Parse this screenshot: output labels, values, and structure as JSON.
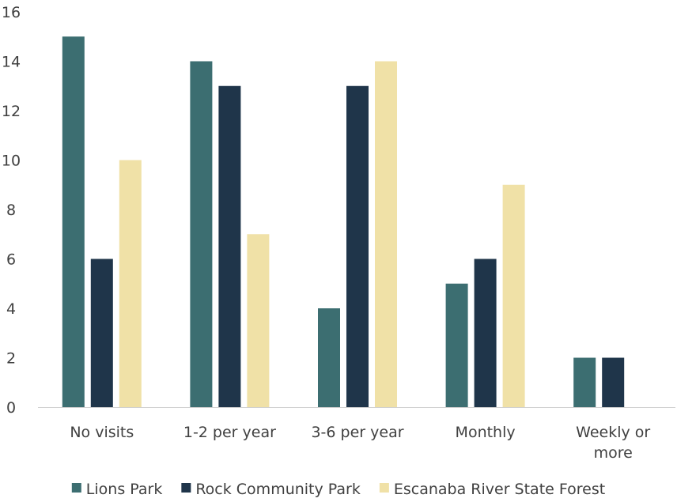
{
  "chart_data": {
    "type": "bar",
    "categories": [
      "No visits",
      "1-2 per year",
      "3-6 per year",
      "Monthly",
      "Weekly or more"
    ],
    "series": [
      {
        "name": "Lions Park",
        "color": "#3c6e71",
        "values": [
          15,
          14,
          4,
          5,
          2
        ]
      },
      {
        "name": "Rock Community Park",
        "color": "#1f354a",
        "values": [
          6,
          13,
          13,
          6,
          2
        ]
      },
      {
        "name": "Escanaba River State Forest",
        "color": "#f0e1a7",
        "values": [
          10,
          7,
          14,
          9,
          0
        ]
      }
    ],
    "ylim": [
      0,
      16
    ],
    "yticks": [
      0,
      2,
      4,
      6,
      8,
      10,
      12,
      14,
      16
    ],
    "grid": false,
    "legend_position": "bottom"
  }
}
